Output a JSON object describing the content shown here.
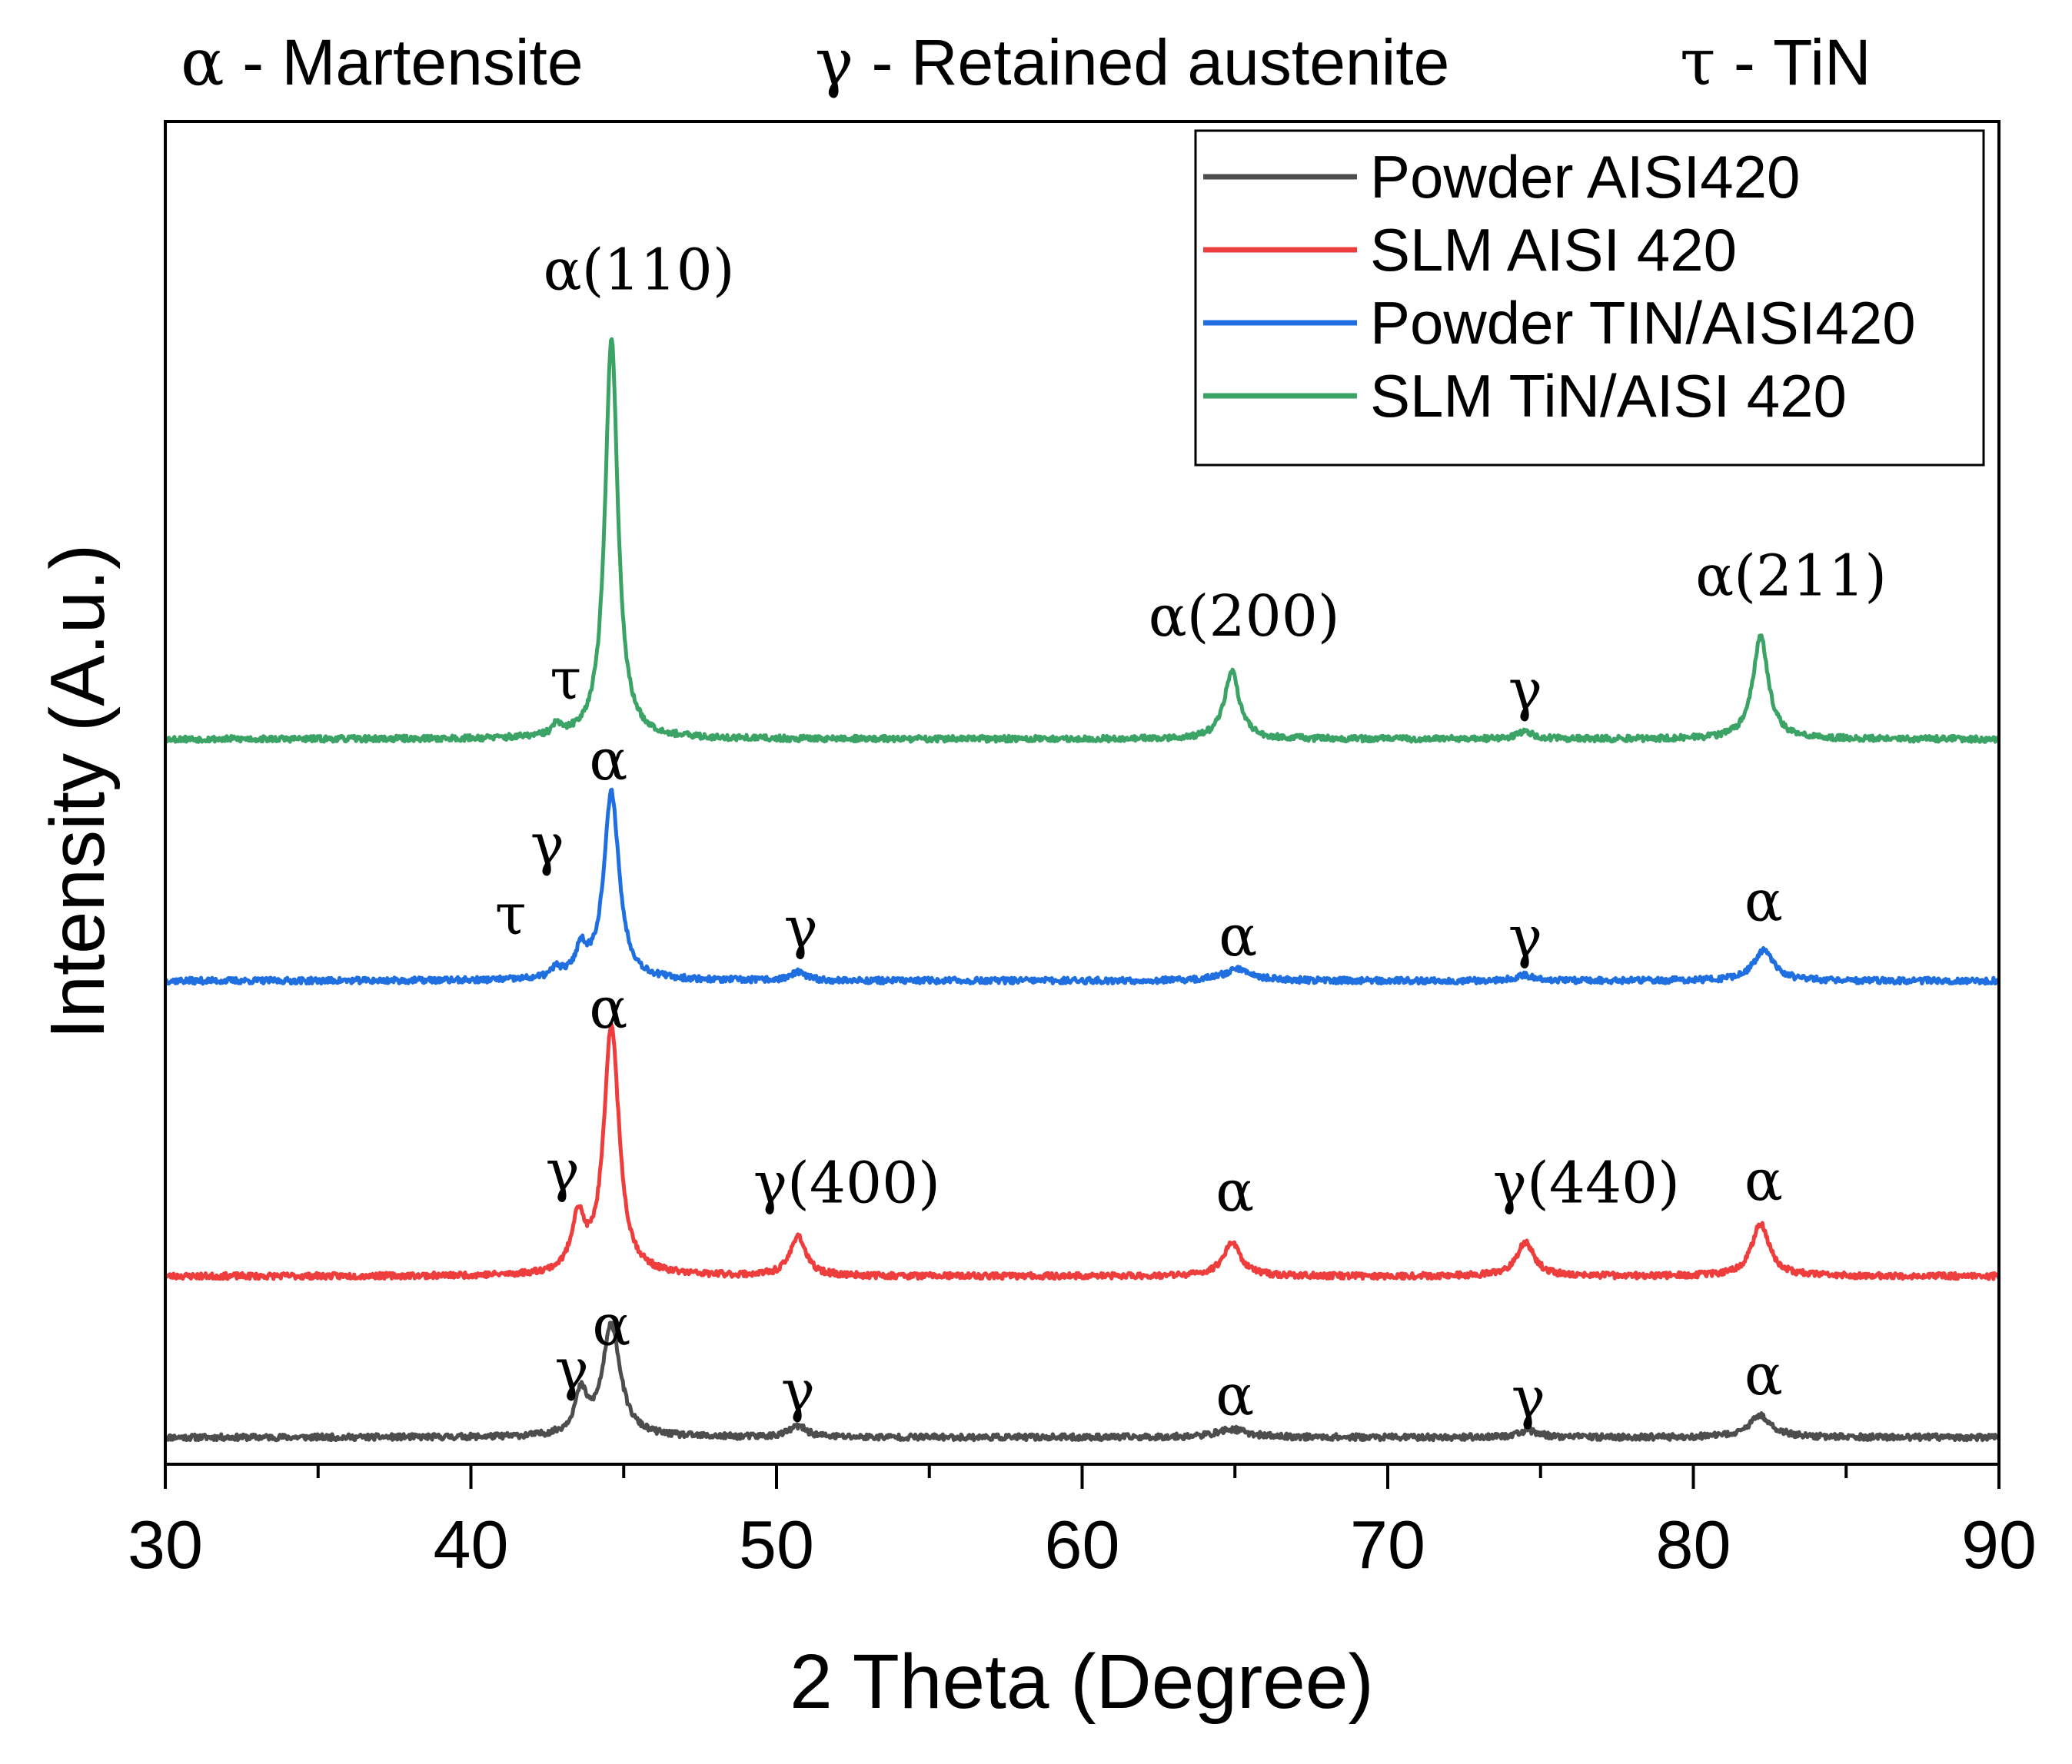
{
  "chart_data": {
    "type": "line",
    "title": "",
    "header_annotations": [
      {
        "symbol": "α",
        "text": " - Martensite"
      },
      {
        "symbol": "γ",
        "text": " - Retained austenite"
      },
      {
        "symbol": "τ",
        "text": " - TiN"
      }
    ],
    "xlabel": "2 Theta (Degree)",
    "ylabel": "Intensity (A.u.)",
    "xlim": [
      30,
      90
    ],
    "ylim": [
      0,
      100
    ],
    "xticks": [
      30,
      40,
      50,
      60,
      70,
      80,
      90
    ],
    "xtick_labels": [
      "30",
      "40",
      "50",
      "60",
      "70",
      "80",
      "90"
    ],
    "y_ticks_shown": false,
    "grid": false,
    "legend_position": "top-right",
    "series": [
      {
        "name": "Powder AISI420",
        "color": "#4d4d4d",
        "baseline": 2,
        "peaks": [
          {
            "x": 43.6,
            "height": 3.0,
            "width": 0.25
          },
          {
            "x": 44.6,
            "height": 8.3,
            "width": 0.35
          },
          {
            "x": 50.7,
            "height": 0.8,
            "width": 0.35
          },
          {
            "x": 64.9,
            "height": 0.6,
            "width": 0.6
          },
          {
            "x": 74.6,
            "height": 0.5,
            "width": 0.4
          },
          {
            "x": 82.2,
            "height": 1.6,
            "width": 0.45
          }
        ],
        "noise_seed": 11
      },
      {
        "name": "SLM AISI 420",
        "color": "#ee3d3d",
        "baseline": 14,
        "peaks": [
          {
            "x": 43.5,
            "height": 4.0,
            "width": 0.25
          },
          {
            "x": 44.6,
            "height": 18.6,
            "width": 0.3
          },
          {
            "x": 50.7,
            "height": 3.0,
            "width": 0.3
          },
          {
            "x": 64.9,
            "height": 2.5,
            "width": 0.35
          },
          {
            "x": 74.5,
            "height": 2.5,
            "width": 0.35
          },
          {
            "x": 82.2,
            "height": 3.9,
            "width": 0.35
          }
        ],
        "noise_seed": 23
      },
      {
        "name": "Powder TIN/AISI420",
        "color": "#1f6fe0",
        "baseline": 36,
        "peaks": [
          {
            "x": 42.8,
            "height": 0.7,
            "width": 0.2
          },
          {
            "x": 43.6,
            "height": 2.0,
            "width": 0.22
          },
          {
            "x": 44.6,
            "height": 14.0,
            "width": 0.3
          },
          {
            "x": 50.7,
            "height": 0.6,
            "width": 0.3
          },
          {
            "x": 65.1,
            "height": 0.9,
            "width": 0.55
          },
          {
            "x": 74.5,
            "height": 0.4,
            "width": 0.4
          },
          {
            "x": 82.3,
            "height": 2.3,
            "width": 0.4
          }
        ],
        "noise_seed": 37
      },
      {
        "name": "SLM TiN/AISI 420",
        "color": "#3aa365",
        "baseline": 54,
        "peaks": [
          {
            "x": 42.8,
            "height": 0.8,
            "width": 0.15
          },
          {
            "x": 44.6,
            "height": 30.0,
            "width": 0.25
          },
          {
            "x": 64.9,
            "height": 5.0,
            "width": 0.3
          },
          {
            "x": 74.5,
            "height": 0.5,
            "width": 0.35
          },
          {
            "x": 82.2,
            "height": 7.7,
            "width": 0.3
          }
        ],
        "noise_seed": 53
      }
    ],
    "annotations": [
      {
        "text": "α(110)",
        "x": 45.5,
        "y": 87.5
      },
      {
        "text": "τ",
        "x": 43.1,
        "y": 57.0
      },
      {
        "text": "α(200)",
        "x": 65.3,
        "y": 61.7
      },
      {
        "text": "γ",
        "x": 74.5,
        "y": 56.2
      },
      {
        "text": "α(211)",
        "x": 83.2,
        "y": 64.7
      },
      {
        "text": "α",
        "x": 44.5,
        "y": 51.0
      },
      {
        "text": "γ",
        "x": 42.5,
        "y": 44.7
      },
      {
        "text": "τ",
        "x": 41.3,
        "y": 39.5
      },
      {
        "text": "γ",
        "x": 50.8,
        "y": 38.5
      },
      {
        "text": "α",
        "x": 65.1,
        "y": 37.9
      },
      {
        "text": "γ",
        "x": 74.5,
        "y": 37.8
      },
      {
        "text": "α",
        "x": 82.3,
        "y": 40.5
      },
      {
        "text": "α",
        "x": 44.5,
        "y": 32.5
      },
      {
        "text": "γ",
        "x": 43.0,
        "y": 20.4
      },
      {
        "text": "γ(400)",
        "x": 52.3,
        "y": 19.5
      },
      {
        "text": "α",
        "x": 65.0,
        "y": 18.9
      },
      {
        "text": "γ(440)",
        "x": 76.5,
        "y": 19.5
      },
      {
        "text": "α",
        "x": 82.3,
        "y": 19.7
      },
      {
        "text": "α",
        "x": 44.6,
        "y": 8.9
      },
      {
        "text": "γ",
        "x": 43.3,
        "y": 5.6
      },
      {
        "text": "γ",
        "x": 50.7,
        "y": 4.0
      },
      {
        "text": "α",
        "x": 65.0,
        "y": 3.7
      },
      {
        "text": "γ",
        "x": 74.6,
        "y": 3.5
      },
      {
        "text": "α",
        "x": 82.3,
        "y": 5.2
      }
    ]
  }
}
